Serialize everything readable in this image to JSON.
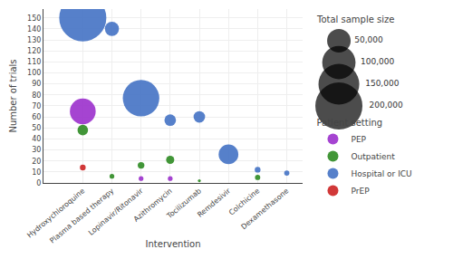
{
  "chart_data": {
    "type": "bubble",
    "xlabel": "Intervention",
    "ylabel": "Number of trials",
    "categories": [
      "Hydroxychloroquine",
      "Plasma based therapy",
      "Lopinavir/Ritonavir",
      "Azithromycin",
      "Tocilizumab",
      "Remdesivir",
      "Colchicine",
      "Dexamethasone"
    ],
    "legend_title": "Patient setting",
    "series": [
      {
        "name": "PEP",
        "color": "#9B30CC",
        "x": [
          "Hydroxychloroquine",
          "Lopinavir/Ritonavir",
          "Azithromycin"
        ],
        "values": [
          65,
          4,
          4
        ],
        "sizes": [
          60000,
          2000,
          2000
        ]
      },
      {
        "name": "Outpatient",
        "color": "#2E8B22",
        "x": [
          "Hydroxychloroquine",
          "Plasma based therapy",
          "Lopinavir/Ritonavir",
          "Azithromycin",
          "Tocilizumab",
          "Colchicine"
        ],
        "values": [
          48,
          6,
          16,
          21,
          2,
          5
        ],
        "sizes": [
          10000,
          2000,
          4000,
          6000,
          800,
          2500
        ]
      },
      {
        "name": "Hospital or ICU",
        "color": "#4472C4",
        "x": [
          "Hydroxychloroquine",
          "Plasma based therapy",
          "Lopinavir/Ritonavir",
          "Azithromycin",
          "Tocilizumab",
          "Remdesivir",
          "Colchicine",
          "Dexamethasone"
        ],
        "values": [
          150,
          140,
          77,
          57,
          60,
          26,
          12,
          9
        ],
        "sizes": [
          200000,
          18000,
          120000,
          12000,
          12000,
          35000,
          3000,
          2500
        ]
      },
      {
        "name": "PrEP",
        "color": "#CC2222",
        "x": [
          "Hydroxychloroquine"
        ],
        "values": [
          14
        ],
        "sizes": [
          3000
        ]
      }
    ],
    "size_legend": {
      "title": "Total sample size",
      "sizes": [
        {
          "value": 50000,
          "label": "50,000"
        },
        {
          "value": 100000,
          "label": "100,000"
        },
        {
          "value": 150000,
          "label": "150,000"
        },
        {
          "value": 200000,
          "label": "200,000"
        }
      ],
      "color": "#000000"
    },
    "ylim": [
      0,
      158
    ],
    "yticks": [
      0,
      10,
      20,
      30,
      40,
      50,
      60,
      70,
      80,
      90,
      100,
      110,
      120,
      130,
      140,
      150
    ],
    "grid": true
  }
}
